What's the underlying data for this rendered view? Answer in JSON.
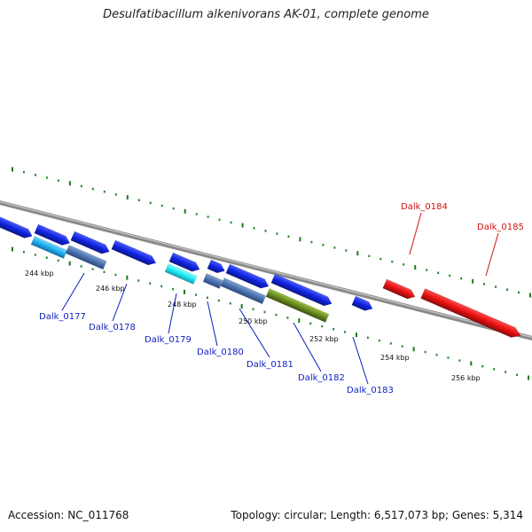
{
  "title": "Desulfatibacillum alkenivorans AK-01, complete genome",
  "footer": {
    "accession": "Accession: NC_011768",
    "summary": "Topology: circular; Length: 6,517,073 bp; Genes: 5,314"
  },
  "ticks": [
    "244 kbp",
    "246 kbp",
    "248 kbp",
    "250 kbp",
    "252 kbp",
    "254 kbp",
    "256 kbp"
  ],
  "genes": [
    {
      "label": "Dalk_0177",
      "color": "#0a1fbf"
    },
    {
      "label": "Dalk_0178",
      "color": "#0a1fbf"
    },
    {
      "label": "Dalk_0179",
      "color": "#0a1fbf"
    },
    {
      "label": "Dalk_0180",
      "color": "#0a1fbf"
    },
    {
      "label": "Dalk_0181",
      "color": "#0a1fbf"
    },
    {
      "label": "Dalk_0182",
      "color": "#0a1fbf"
    },
    {
      "label": "Dalk_0183",
      "color": "#0a1fbf"
    },
    {
      "label": "Dalk_0184",
      "color": "#d11010"
    },
    {
      "label": "Dalk_0185",
      "color": "#d11010"
    }
  ]
}
